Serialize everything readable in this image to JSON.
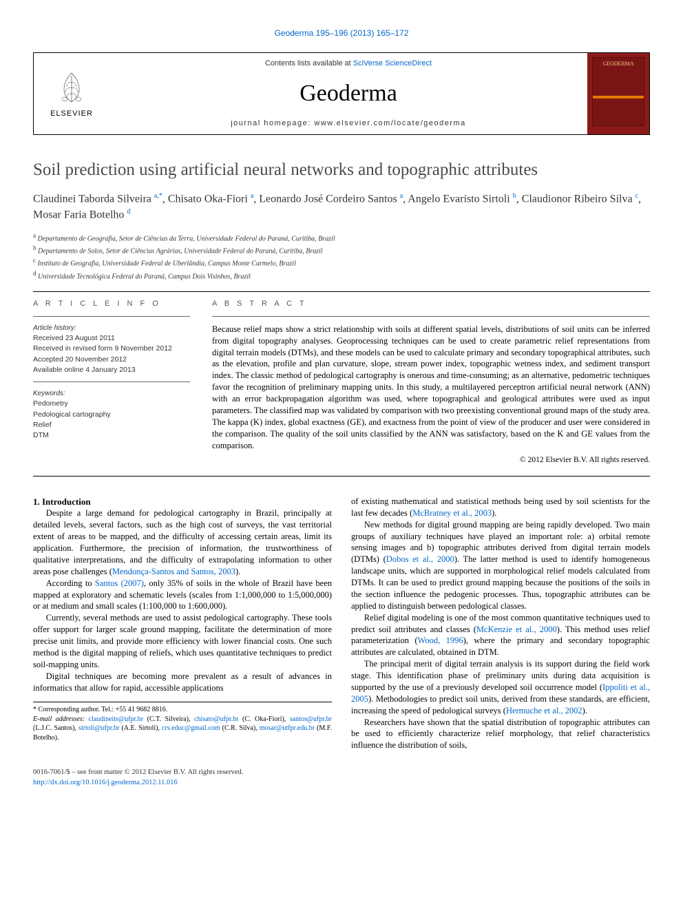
{
  "journal_reference": {
    "prefix": "Geoderma 195–196 (2013) 165–172",
    "link_text": "Geoderma 195–196 (2013) 165–172",
    "link_color": "#0066cc"
  },
  "header": {
    "contents_prefix": "Contents lists available at ",
    "contents_link": "SciVerse ScienceDirect",
    "journal_title": "Geoderma",
    "homepage_prefix": "journal homepage: ",
    "homepage_url": "www.elsevier.com/locate/geoderma",
    "publisher": "ELSEVIER",
    "cover_label": "GEODERMA"
  },
  "article": {
    "title": "Soil prediction using artificial neural networks and topographic attributes",
    "authors_html": "Claudinei Taborda Silveira <sup>a,</sup><sup>*</sup>, Chisato Oka-Fiori <sup>a</sup>, Leonardo José Cordeiro Santos <sup>a</sup>, Angelo Evaristo Sirtoli <sup>b</sup>, Claudionor Ribeiro Silva <sup>c</sup>, Mosar Faria Botelho <sup>d</sup>",
    "affiliations": [
      {
        "key": "a",
        "text": "Departamento de Geografia, Setor de Ciências da Terra, Universidade Federal do Paraná, Curitiba, Brazil"
      },
      {
        "key": "b",
        "text": "Departamento de Solos, Setor de Ciências Agrárias, Universidade Federal do Paraná, Curitiba, Brazil"
      },
      {
        "key": "c",
        "text": "Instituto de Geografia, Universidade Federal de Uberlândia, Campus Monte Carmelo, Brazil"
      },
      {
        "key": "d",
        "text": "Universidade Tecnológica Federal do Paraná, Campus Dois Visinhos, Brazil"
      }
    ]
  },
  "info": {
    "heading": "A R T I C L E   I N F O",
    "history_label": "Article history:",
    "history": [
      "Received 23 August 2011",
      "Received in revised form 9 November 2012",
      "Accepted 20 November 2012",
      "Available online 4 January 2013"
    ],
    "keywords_label": "Keywords:",
    "keywords": [
      "Pedometry",
      "Pedological cartography",
      "Relief",
      "DTM"
    ]
  },
  "abstract": {
    "heading": "A B S T R A C T",
    "text": "Because relief maps show a strict relationship with soils at different spatial levels, distributions of soil units can be inferred from digital topography analyses. Geoprocessing techniques can be used to create parametric relief representations from digital terrain models (DTMs), and these models can be used to calculate primary and secondary topographical attributes, such as the elevation, profile and plan curvature, slope, stream power index, topographic wetness index, and sediment transport index. The classic method of pedological cartography is onerous and time-consuming; as an alternative, pedometric techniques favor the recognition of preliminary mapping units. In this study, a multilayered perceptron artificial neural network (ANN) with an error backpropagation algorithm was used, where topographical and geological attributes were used as input parameters. The classified map was validated by comparison with two preexisting conventional ground maps of the study area. The kappa (K) index, global exactness (GE), and exactness from the point of view of the producer and user were considered in the comparison. The quality of the soil units classified by the ANN was satisfactory, based on the K and GE values from the comparison.",
    "copyright": "© 2012 Elsevier B.V. All rights reserved."
  },
  "body": {
    "section1_heading": "1. Introduction",
    "p1": "Despite a large demand for pedological cartography in Brazil, principally at detailed levels, several factors, such as the high cost of surveys, the vast territorial extent of areas to be mapped, and the difficulty of accessing certain areas, limit its application. Furthermore, the precision of information, the trustworthiness of qualitative interpretations, and the difficulty of extrapolating information to other areas pose challenges (",
    "p1_link": "Mendonça-Santos and Santos, 2003",
    "p1_end": ").",
    "p2_start": "According to ",
    "p2_link": "Santos (2007)",
    "p2_end": ", only 35% of soils in the whole of Brazil have been mapped at exploratory and schematic levels (scales from 1:1,000,000 to 1:5,000,000) or at medium and small scales (1:100,000 to 1:600,000).",
    "p3": "Currently, several methods are used to assist pedological cartography. These tools offer support for larger scale ground mapping, facilitate the determination of more precise unit limits, and provide more efficiency with lower financial costs. One such method is the digital mapping of reliefs, which uses quantitative techniques to predict soil-mapping units.",
    "p4": "Digital techniques are becoming more prevalent as a result of advances in informatics that allow for rapid, accessible applications",
    "p5_start": "of existing mathematical and statistical methods being used by soil scientists for the last few decades (",
    "p5_link": "McBratney et al., 2003",
    "p5_end": ").",
    "p6_start": "New methods for digital ground mapping are being rapidly developed. Two main groups of auxiliary techniques have played an important role: a) orbital remote sensing images and b) topographic attributes derived from digital terrain models (DTMs) (",
    "p6_link": "Dobos et al., 2000",
    "p6_end": "). The latter method is used to identify homogeneous landscape units, which are supported in morphological relief models calculated from DTMs. It can be used to predict ground mapping because the positions of the soils in the section influence the pedogenic processes. Thus, topographic attributes can be applied to distinguish between pedological classes.",
    "p7_start": "Relief digital modeling is one of the most common quantitative techniques used to predict soil attributes and classes (",
    "p7_link1": "McKenzie et al., 2000",
    "p7_mid": "). This method uses relief parameterization (",
    "p7_link2": "Wood, 1996",
    "p7_end": "), where the primary and secondary topographic attributes are calculated, obtained in DTM.",
    "p8_start": "The principal merit of digital terrain analysis is its support during the field work stage. This identification phase of preliminary units during data acquisition is supported by the use of a previously developed soil occurrence model (",
    "p8_link1": "Ippoliti et al., 2005",
    "p8_mid": "). Methodologies to predict soil units, derived from these standards, are efficient, increasing the speed of pedological surveys (",
    "p8_link2": "Hermuche et al., 2002",
    "p8_end": ").",
    "p9": "Researchers have shown that the spatial distribution of topographic attributes can be used to efficiently characterize relief morphology, that relief characteristics influence the distribution of soils,"
  },
  "footnotes": {
    "corr": "Corresponding author. Tel.: +55 41 9682 8816.",
    "email_label": "E-mail addresses:",
    "emails": [
      {
        "addr": "claudineits@ufpr.br",
        "who": "(C.T. Silveira)"
      },
      {
        "addr": "chisato@ufpr.br",
        "who": "(C. Oka-Fiori)"
      },
      {
        "addr": "santos@ufpr.br",
        "who": "(L.J.C. Santos)"
      },
      {
        "addr": "sirtoli@ufpr.br",
        "who": "(A.E. Sirtoli)"
      },
      {
        "addr": "crs.educ@gmail.com",
        "who": "(C.R. Silva)"
      },
      {
        "addr": "mosar@utfpr.edu.br",
        "who": "(M.F. Botelho)."
      }
    ]
  },
  "footer": {
    "issn_line": "0016-7061/$ – see front matter © 2012 Elsevier B.V. All rights reserved.",
    "doi": "http://dx.doi.org/10.1016/j.geoderma.2012.11.016"
  },
  "colors": {
    "link": "#0066cc",
    "orange_bar": "#e67a00",
    "cover_bg": "#8b1a1a",
    "title_gray": "#4a4a4a"
  }
}
